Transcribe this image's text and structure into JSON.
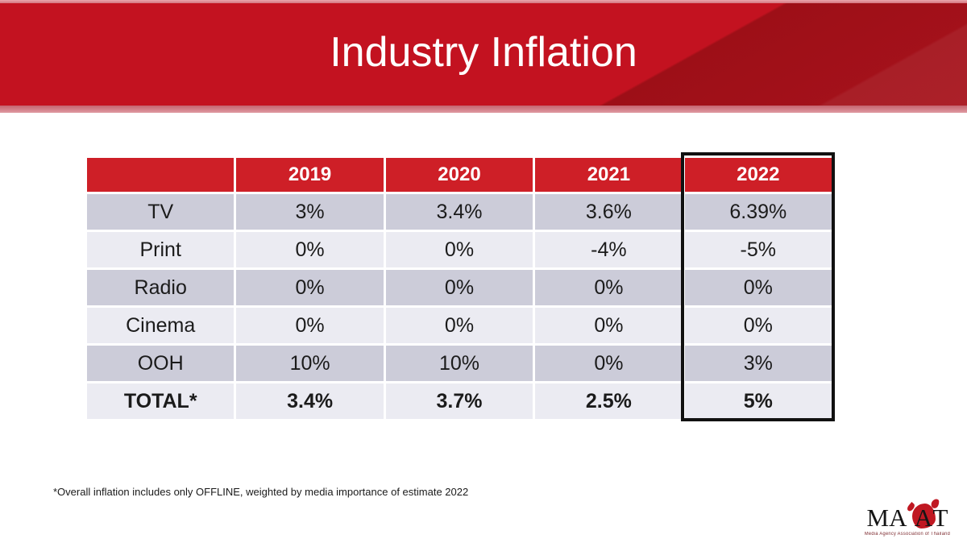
{
  "title": "Industry Inflation",
  "table": {
    "col_headers": [
      "",
      "2019",
      "2020",
      "2021",
      "2022"
    ],
    "rows": [
      {
        "label": "TV",
        "values": [
          "3%",
          "3.4%",
          "3.6%",
          "6.39%"
        ]
      },
      {
        "label": "Print",
        "values": [
          "0%",
          "0%",
          "-4%",
          "-5%"
        ]
      },
      {
        "label": "Radio",
        "values": [
          "0%",
          "0%",
          "0%",
          "0%"
        ]
      },
      {
        "label": "Cinema",
        "values": [
          "0%",
          "0%",
          "0%",
          "0%"
        ]
      },
      {
        "label": "OOH",
        "values": [
          "10%",
          "10%",
          "0%",
          "3%"
        ]
      },
      {
        "label": "TOTAL*",
        "values": [
          "3.4%",
          "3.7%",
          "2.5%",
          "5%"
        ]
      }
    ],
    "highlighted_column": "2022"
  },
  "footnote": "*Overall inflation includes only OFFLINE, weighted by media importance of estimate 2022",
  "logo": {
    "text": "MAAT",
    "part1": "MA",
    "part2": "A",
    "part3": "T",
    "caption": "Media Agency Association of Thailand"
  },
  "colors": {
    "banner_red_light": "#c31220",
    "banner_red_dark": "#9d0f17",
    "banner_edge_pink": "#d4737d",
    "table_header_red": "#ce1f27",
    "row_dark": "#ccccd9",
    "row_light": "#ebebf2",
    "highlight_border": "#111111",
    "logo_red": "#c01822",
    "text_dark": "#1b1b1b"
  }
}
